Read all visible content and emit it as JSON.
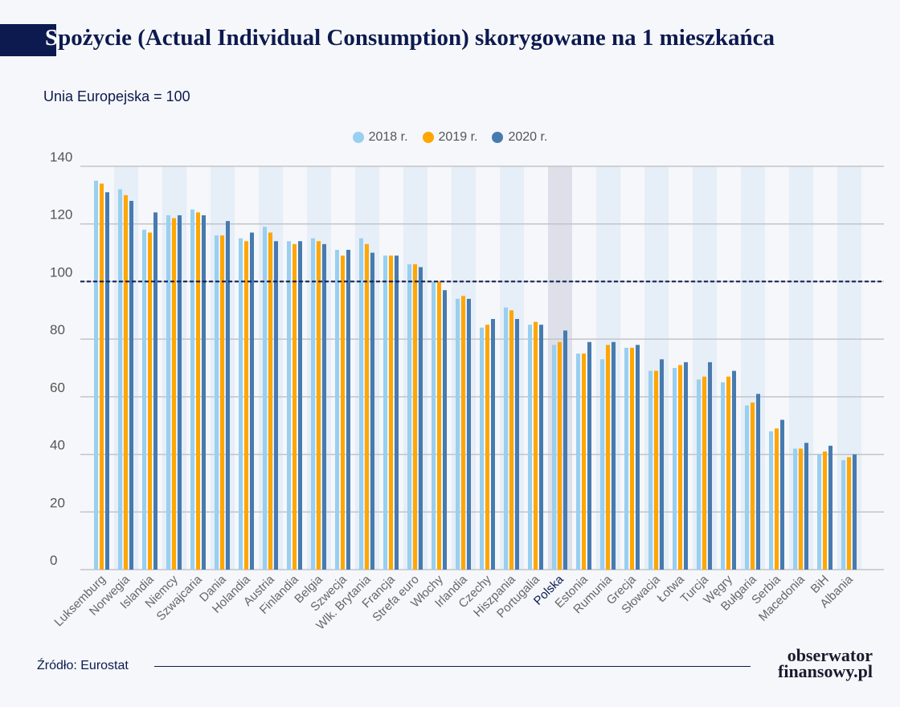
{
  "title_first": "S",
  "title_rest": "pożycie (Actual Individual Consumption) skorygowane na 1 mieszkańca",
  "subtitle": "Unia Europejska = 100",
  "source": "Źródło: Eurostat",
  "logo": {
    "line1": "obserwator",
    "line2": "finansowy.pl"
  },
  "colors": {
    "2018 r.": "#99cfef",
    "2019 r.": "#ffa600",
    "2020 r.": "#477bb0",
    "highlight": "#0d1a4f",
    "band": "#e6eef7",
    "band_highlight": "#dde0e9"
  },
  "chart_data": {
    "type": "bar",
    "title": "Spożycie (Actual Individual Consumption) skorygowane na 1 mieszkańca",
    "ylabel": "Unia Europejska = 100",
    "ylim": [
      0,
      140
    ],
    "yticks": [
      0,
      20,
      40,
      60,
      80,
      100,
      120,
      140
    ],
    "reference_line": 100,
    "highlight_category": "Polska",
    "legend_placement": "top-center",
    "categories": [
      "Luksemburg",
      "Norwegia",
      "Islandia",
      "Niemcy",
      "Szwajcaria",
      "Dania",
      "Holandia",
      "Austria",
      "Finlandia",
      "Belgia",
      "Szwecja",
      "Wlk. Brytania",
      "Francja",
      "Strefa euro",
      "Włochy",
      "Irlandia",
      "Czechy",
      "Hiszpania",
      "Portugalia",
      "Polska",
      "Estonia",
      "Rumunia",
      "Grecja",
      "Słowacja",
      "Łotwa",
      "Turcja",
      "Węgry",
      "Bułgaria",
      "Serbia",
      "Macedonia",
      "BiH",
      "Albania"
    ],
    "series": [
      {
        "name": "2018 r.",
        "values": [
          135,
          132,
          118,
          123,
          125,
          116,
          115,
          119,
          114,
          115,
          111,
          115,
          109,
          106,
          100,
          94,
          84,
          91,
          85,
          78,
          75,
          73,
          77,
          69,
          70,
          66,
          65,
          57,
          48,
          42,
          40,
          38
        ]
      },
      {
        "name": "2019 r.",
        "values": [
          134,
          130,
          117,
          122,
          124,
          116,
          114,
          117,
          113,
          114,
          109,
          113,
          109,
          106,
          100,
          95,
          85,
          90,
          86,
          79,
          75,
          78,
          77,
          69,
          71,
          67,
          67,
          58,
          49,
          42,
          41,
          39
        ]
      },
      {
        "name": "2020 r.",
        "values": [
          131,
          128,
          124,
          123,
          123,
          121,
          117,
          114,
          114,
          113,
          111,
          110,
          109,
          105,
          97,
          94,
          87,
          87,
          85,
          83,
          79,
          79,
          78,
          73,
          72,
          72,
          69,
          61,
          52,
          44,
          43,
          40
        ]
      }
    ]
  }
}
